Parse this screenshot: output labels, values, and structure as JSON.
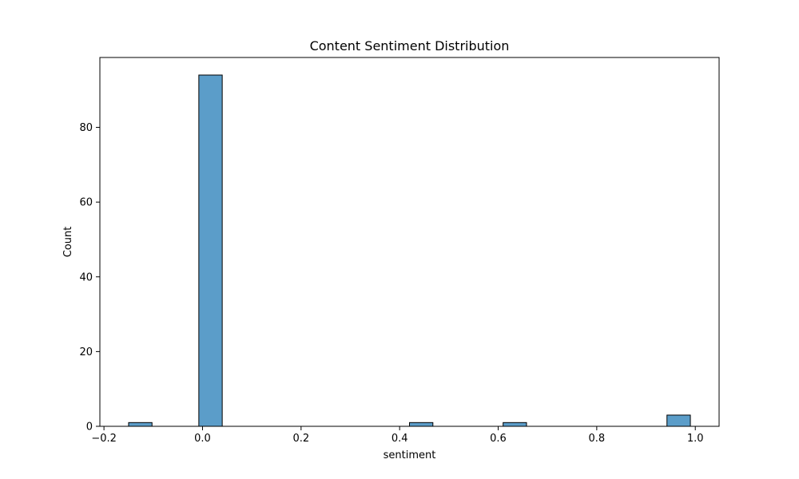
{
  "chart_data": {
    "type": "bar",
    "subtype": "histogram",
    "title": "Content Sentiment Distribution",
    "xlabel": "sentiment",
    "ylabel": "Count",
    "xlim": [
      -0.2083,
      1.0483
    ],
    "ylim": [
      0,
      98.7
    ],
    "xticks": [
      -0.2,
      0.0,
      0.2,
      0.4,
      0.6,
      0.8,
      1.0
    ],
    "xtick_labels": [
      "−0.2",
      "0.0",
      "0.2",
      "0.4",
      "0.6",
      "0.8",
      "1.0"
    ],
    "yticks": [
      0,
      20,
      40,
      60,
      80
    ],
    "ytick_labels": [
      "0",
      "20",
      "40",
      "60",
      "80"
    ],
    "bin_width": 0.0475,
    "bins": [
      {
        "x0": -0.15,
        "count": 1
      },
      {
        "x0": -0.0075,
        "count": 94
      },
      {
        "x0": 0.42,
        "count": 1
      },
      {
        "x0": 0.61,
        "count": 1
      },
      {
        "x0": 0.9425,
        "count": 3
      }
    ],
    "grid": false,
    "legend": "none",
    "bar_color": "#5b9dc9",
    "bar_edge_color": "#000000"
  }
}
